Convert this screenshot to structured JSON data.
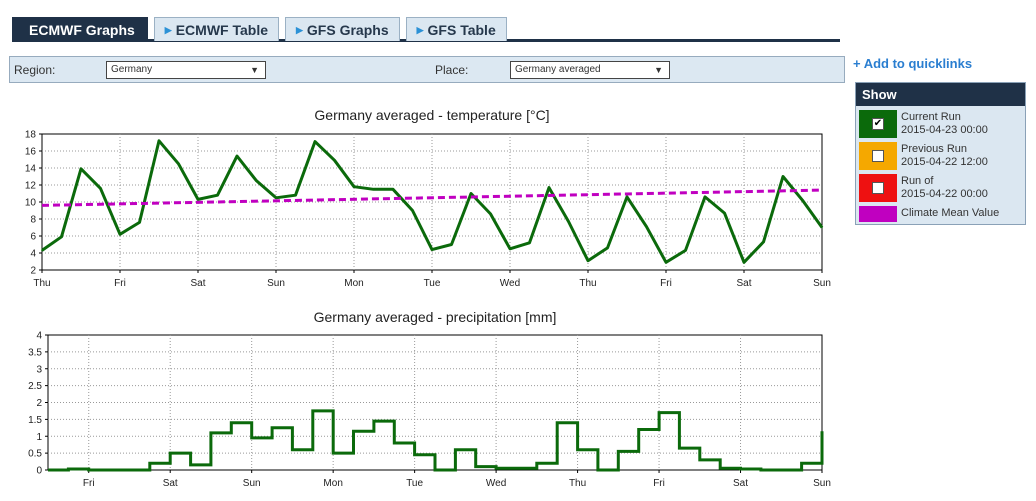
{
  "tabs": [
    {
      "label": "ECMWF Graphs",
      "active": true
    },
    {
      "label": "ECMWF Table",
      "active": false
    },
    {
      "label": "GFS Graphs",
      "active": false
    },
    {
      "label": "GFS Table",
      "active": false
    }
  ],
  "selector": {
    "region_label": "Region:",
    "region_value": "Germany",
    "place_label": "Place:",
    "place_value": "Germany averaged"
  },
  "quicklinks": {
    "label": "+ Add to quicklinks"
  },
  "show_panel": {
    "title": "Show",
    "items": [
      {
        "line1": "Current Run",
        "line2": "2015-04-23 00:00",
        "color": "#0b6a0b",
        "checked": true
      },
      {
        "line1": "Previous Run",
        "line2": "2015-04-22 12:00",
        "color": "#f5a800",
        "checked": false
      },
      {
        "line1": "Run of",
        "line2": "2015-04-22 00:00",
        "color": "#ee1111",
        "checked": false
      },
      {
        "line1": "Climate Mean Value",
        "line2": "",
        "color": "#c000c0",
        "checked": false
      }
    ]
  },
  "chart_data": [
    {
      "type": "line",
      "title": "Germany averaged - temperature [°C]",
      "ylim": [
        2,
        18
      ],
      "yticks": [
        2,
        4,
        6,
        8,
        10,
        12,
        14,
        16,
        18
      ],
      "xlim": [
        0,
        20
      ],
      "xticks": [
        {
          "x": 0,
          "label": "Thu"
        },
        {
          "x": 2,
          "label": "Fri"
        },
        {
          "x": 4,
          "label": "Sat"
        },
        {
          "x": 6,
          "label": "Sun"
        },
        {
          "x": 8,
          "label": "Mon"
        },
        {
          "x": 10,
          "label": "Tue"
        },
        {
          "x": 12,
          "label": "Wed"
        },
        {
          "x": 14,
          "label": "Thu"
        },
        {
          "x": 16,
          "label": "Fri"
        },
        {
          "x": 18,
          "label": "Sat"
        },
        {
          "x": 20,
          "label": "Sun"
        }
      ],
      "grid": true,
      "series": [
        {
          "name": "Current Run",
          "color": "#0b6a0b",
          "style": "solid",
          "x": [
            0,
            0.5,
            1,
            1.5,
            2,
            2.5,
            3,
            3.5,
            4,
            4.5,
            5,
            5.5,
            6,
            6.5,
            7,
            7.5,
            8,
            8.5,
            9,
            9.5,
            10,
            10.5,
            11,
            11.5,
            12,
            12.5,
            13,
            13.5,
            14,
            14.5,
            15,
            15.5,
            16,
            16.5,
            17,
            17.5,
            18,
            18.5,
            19,
            19.5,
            20
          ],
          "values": [
            4.3,
            5.9,
            13.9,
            11.6,
            6.2,
            7.6,
            17.2,
            14.5,
            10.3,
            10.8,
            15.4,
            12.5,
            10.5,
            10.8,
            17.1,
            14.9,
            11.8,
            11.5,
            11.5,
            9.0,
            4.4,
            5.0,
            11.0,
            8.6,
            4.5,
            5.2,
            11.7,
            7.7,
            3.1,
            4.6,
            10.6,
            7.1,
            2.9,
            4.3,
            10.6,
            8.7,
            2.9,
            5.3,
            13.0,
            10.2,
            7.0
          ]
        },
        {
          "name": "Climate Mean Value",
          "color": "#c000c0",
          "style": "dashed",
          "x": [
            0,
            20
          ],
          "values": [
            9.6,
            11.4
          ]
        }
      ]
    },
    {
      "type": "bar",
      "title": "Germany averaged - precipitation [mm]",
      "ylim": [
        0,
        4
      ],
      "yticks": [
        0,
        0.5,
        1,
        1.5,
        2,
        2.5,
        3,
        3.5,
        4
      ],
      "ytick_labels": [
        "0",
        "0.5",
        "1",
        "1.5",
        "2",
        "2.5",
        "3",
        "3.5",
        "4"
      ],
      "xlim": [
        0,
        19
      ],
      "xticks": [
        {
          "x": 1,
          "label": "Fri"
        },
        {
          "x": 3,
          "label": "Sat"
        },
        {
          "x": 5,
          "label": "Sun"
        },
        {
          "x": 7,
          "label": "Mon"
        },
        {
          "x": 9,
          "label": "Tue"
        },
        {
          "x": 11,
          "label": "Wed"
        },
        {
          "x": 13,
          "label": "Thu"
        },
        {
          "x": 15,
          "label": "Fri"
        },
        {
          "x": 17,
          "label": "Sat"
        },
        {
          "x": 19,
          "label": "Sun"
        }
      ],
      "grid": true,
      "step": 0.5,
      "series": [
        {
          "name": "Current Run",
          "color": "#0b6a0b",
          "values": [
            0.0,
            0.03,
            0.0,
            0.0,
            0.0,
            0.2,
            0.5,
            0.15,
            1.1,
            1.4,
            0.95,
            1.25,
            0.6,
            1.75,
            0.5,
            1.15,
            1.45,
            0.8,
            0.45,
            0.0,
            0.6,
            0.1,
            0.05,
            0.05,
            0.2,
            1.4,
            0.6,
            0.0,
            0.55,
            1.2,
            1.7,
            0.65,
            0.3,
            0.05,
            0.03,
            0.0,
            0.0,
            0.2
          ],
          "end_value": 1.15
        }
      ]
    }
  ]
}
